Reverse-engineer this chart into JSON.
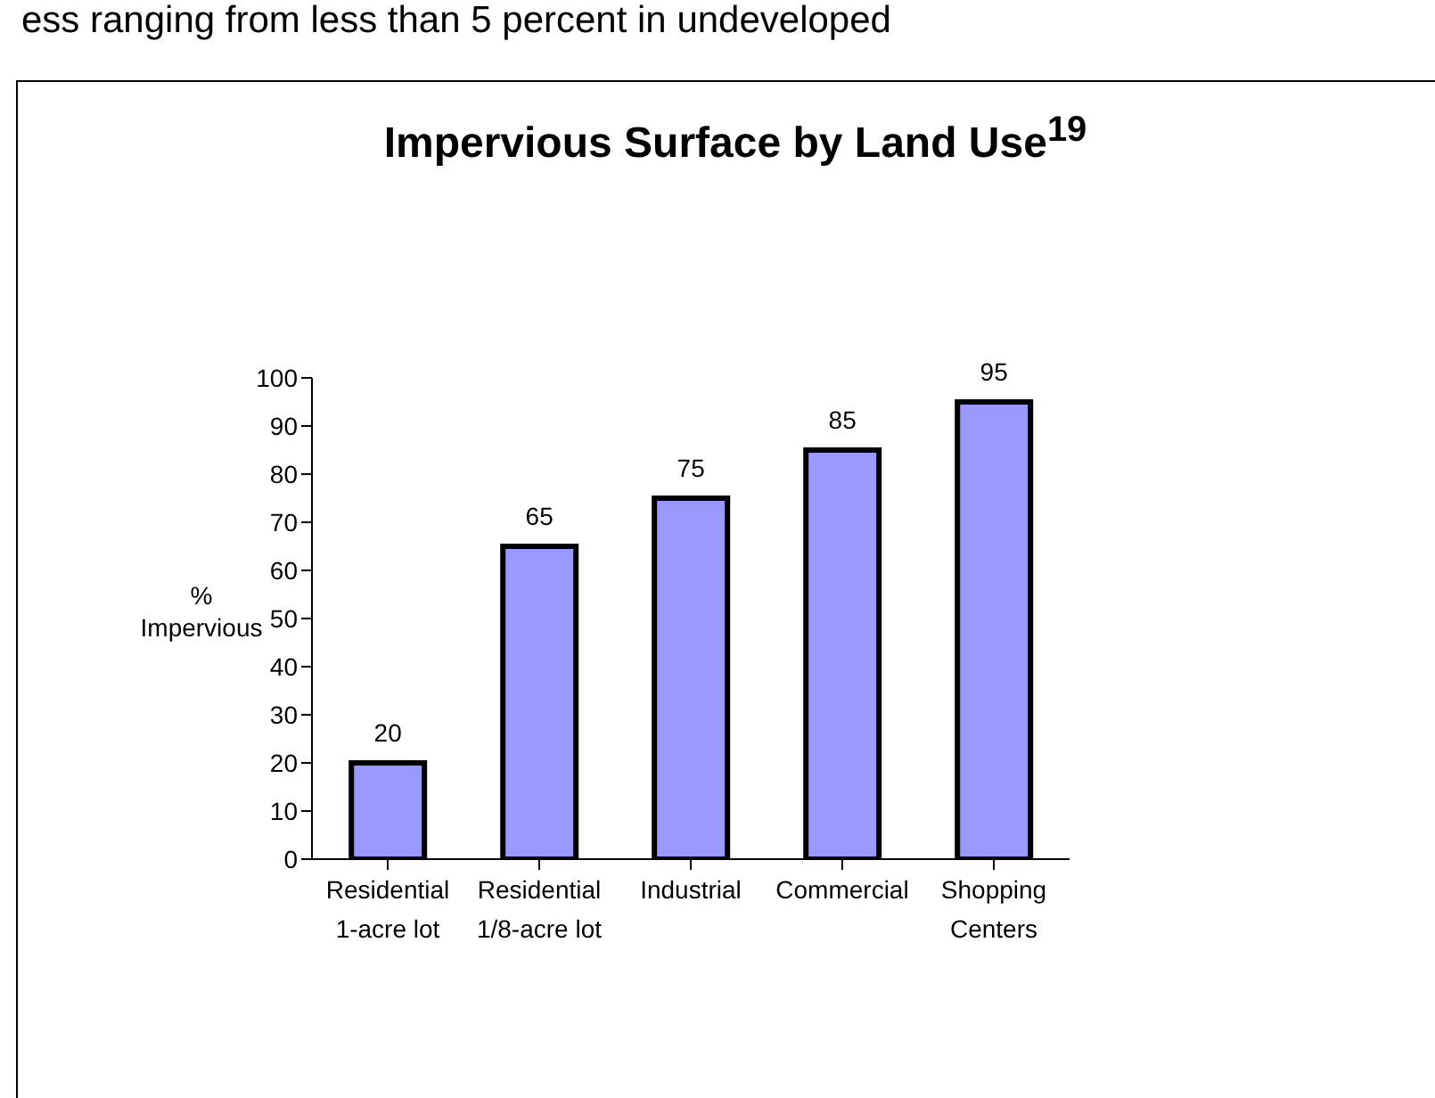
{
  "chart_data": {
    "type": "bar",
    "title": "Impervious Surface by Land Use$^{19}$",
    "annotations": [
      "ess ranging from less than 5 percent in undeveloped"
    ],
    "categories": [
      "Residential 1-acre lot",
      "Residential 1/8-acre lot",
      "Industrial",
      "Commercial",
      "Shopping Centers"
    ],
    "values": [
      20,
      65,
      75,
      85,
      95
    ],
    "color": "#9999ff",
    "ylabel": "% Impervious",
    "ylim": [
      0,
      100
    ],
    "yticks": [
      0,
      10,
      20,
      30,
      40,
      50,
      60,
      70,
      80,
      90,
      100
    ],
    "data_labels": true
  }
}
